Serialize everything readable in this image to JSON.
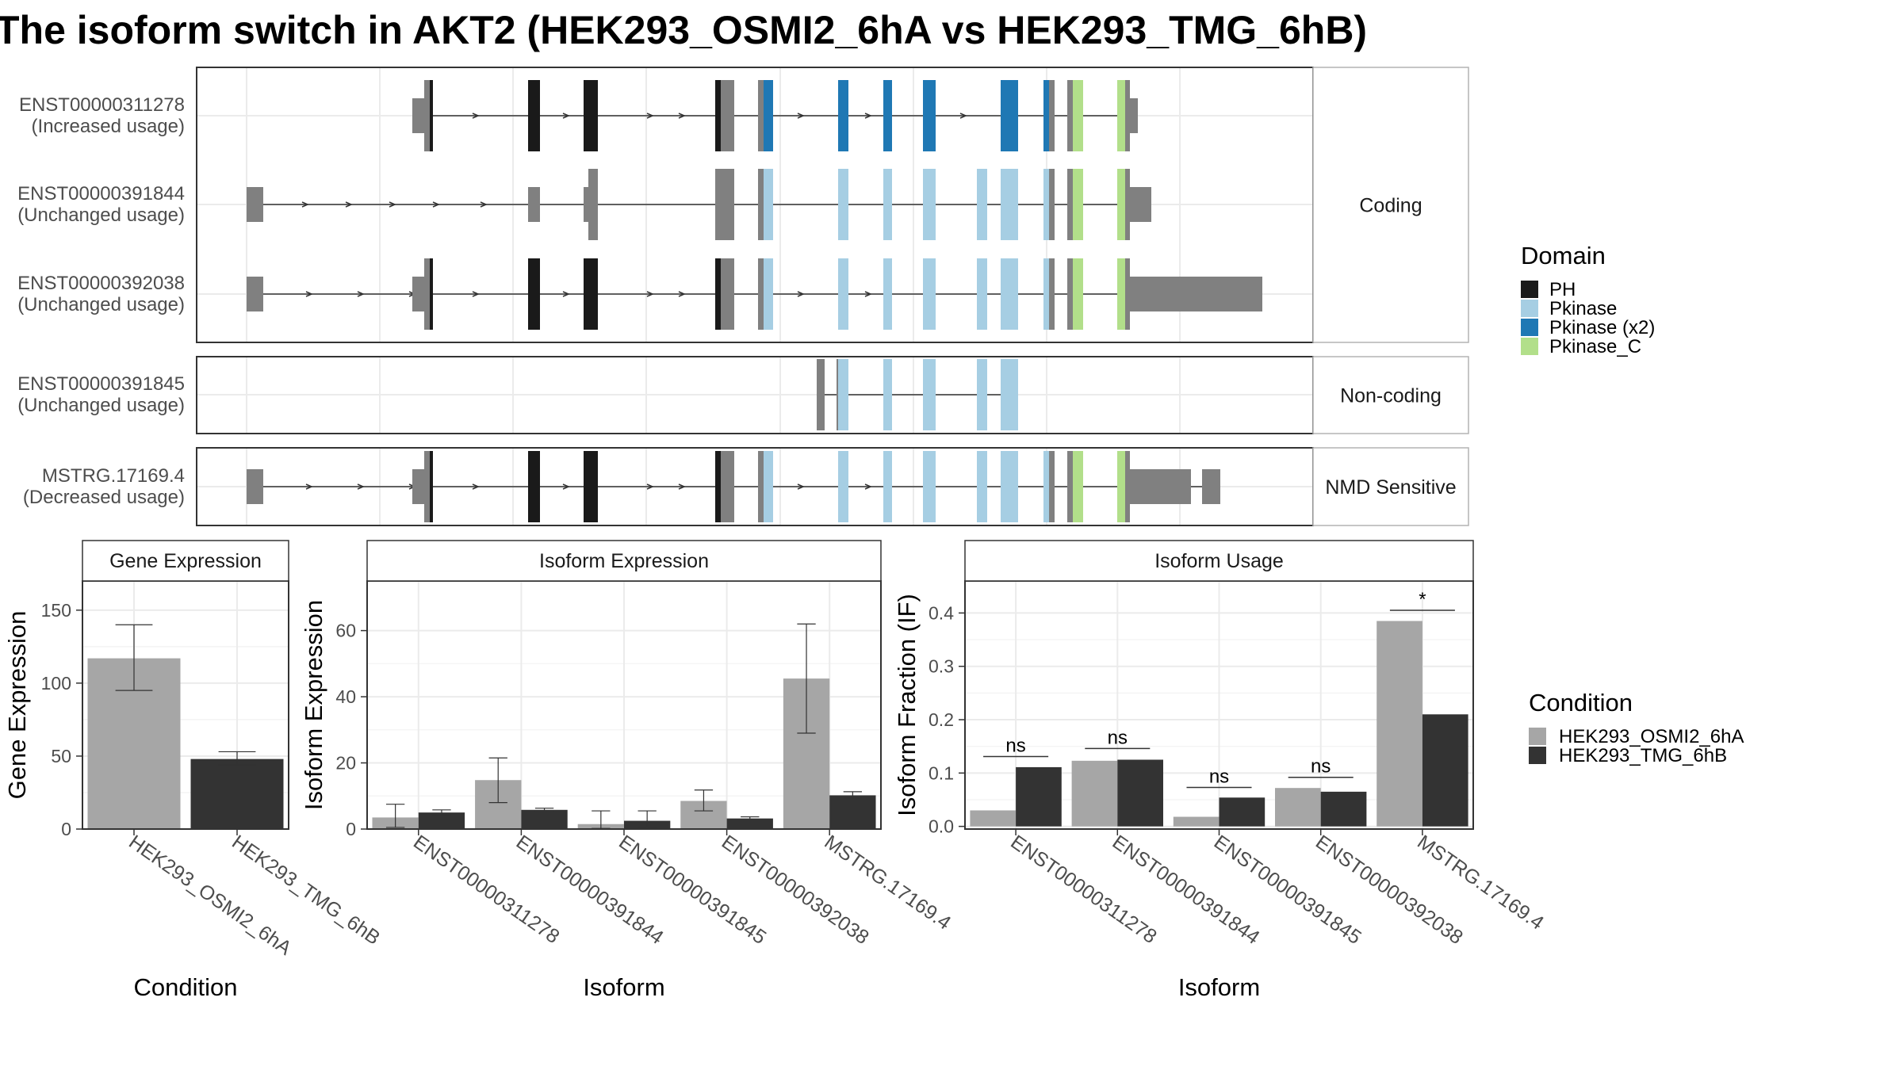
{
  "title": "The isoform switch in AKT2 (HEK293_OSMI2_6hA vs HEK293_TMG_6hB)",
  "colors": {
    "ph": "#1a1a1a",
    "pkinase": "#a6cee3",
    "pkinase_x2": "#1f78b4",
    "pkinase_c": "#b2df8a",
    "exon_gray": "#808080",
    "cond_a": "#a6a6a6",
    "cond_b": "#333333",
    "grid": "#ebebeb",
    "strip_fill": "#ffffff"
  },
  "chart_data": [
    {
      "type": "diagram",
      "name": "transcript-structure",
      "groups": [
        {
          "label": "Coding",
          "transcripts": [
            {
              "id": "ENST00000311278",
              "usage": "(Increased usage)"
            },
            {
              "id": "ENST00000391844",
              "usage": "(Unchanged usage)"
            },
            {
              "id": "ENST00000392038",
              "usage": "(Unchanged usage)"
            }
          ]
        },
        {
          "label": "Non-coding",
          "transcripts": [
            {
              "id": "ENST00000391845",
              "usage": "(Unchanged usage)"
            }
          ]
        },
        {
          "label": "NMD Sensitive",
          "transcripts": [
            {
              "id": "MSTRG.17169.4",
              "usage": "(Decreased usage)"
            }
          ]
        }
      ],
      "legend": {
        "title": "Domain",
        "entries": [
          {
            "name": "PH",
            "color": "#1a1a1a"
          },
          {
            "name": "Pkinase",
            "color": "#a6cee3"
          },
          {
            "name": "Pkinase (x2)",
            "color": "#1f78b4"
          },
          {
            "name": "Pkinase_C",
            "color": "#b2df8a"
          }
        ]
      }
    },
    {
      "type": "bar",
      "panel_title": "Gene Expression",
      "xlabel": "Condition",
      "ylabel": "Gene Expression",
      "ylim": [
        0,
        170
      ],
      "yticks": [
        0,
        50,
        100,
        150
      ],
      "categories": [
        "HEK293_OSMI2_6hA",
        "HEK293_TMG_6hB"
      ],
      "values": [
        117,
        48
      ],
      "err_low": [
        95,
        44
      ],
      "err_high": [
        140,
        53
      ]
    },
    {
      "type": "bar",
      "panel_title": "Isoform Expression",
      "xlabel": "Isoform",
      "ylabel": "Isoform Expression",
      "ylim": [
        0,
        75
      ],
      "yticks": [
        0,
        20,
        40,
        60
      ],
      "categories": [
        "ENST00000311278",
        "ENST00000391844",
        "ENST00000391845",
        "ENST00000392038",
        "MSTRG.17169.4"
      ],
      "series": [
        {
          "name": "HEK293_OSMI2_6hA",
          "values": [
            3.5,
            14.8,
            1.5,
            8.5,
            45.5
          ],
          "err_low": [
            0.5,
            8,
            0.2,
            5.5,
            29
          ],
          "err_high": [
            7.5,
            21.5,
            5.5,
            11.8,
            62
          ]
        },
        {
          "name": "HEK293_TMG_6hB",
          "values": [
            5,
            5.8,
            2.5,
            3.2,
            10.2
          ],
          "err_low": [
            4.4,
            5.4,
            0.5,
            2.8,
            9.3
          ],
          "err_high": [
            5.8,
            6.3,
            5.5,
            3.7,
            11.3
          ]
        }
      ]
    },
    {
      "type": "bar",
      "panel_title": "Isoform Usage",
      "xlabel": "Isoform",
      "ylabel": "Isoform Fraction (IF)",
      "ylim": [
        -0.005,
        0.46
      ],
      "yticks": [
        0.0,
        0.1,
        0.2,
        0.3,
        0.4
      ],
      "ytick_labels": [
        "0.0",
        "0.1",
        "0.2",
        "0.3",
        "0.4"
      ],
      "categories": [
        "ENST00000311278",
        "ENST00000391844",
        "ENST00000391845",
        "ENST00000392038",
        "MSTRG.17169.4"
      ],
      "series": [
        {
          "name": "HEK293_OSMI2_6hA",
          "values": [
            0.03,
            0.123,
            0.018,
            0.072,
            0.385
          ]
        },
        {
          "name": "HEK293_TMG_6hB",
          "values": [
            0.111,
            0.125,
            0.054,
            0.065,
            0.21
          ]
        }
      ],
      "significance": [
        "ns",
        "ns",
        "ns",
        "ns",
        "*"
      ],
      "sig_levels": [
        0.131,
        0.146,
        0.073,
        0.092,
        0.405
      ]
    }
  ],
  "condition_legend": {
    "title": "Condition",
    "entries": [
      {
        "name": "HEK293_OSMI2_6hA",
        "color": "#a6a6a6"
      },
      {
        "name": "HEK293_TMG_6hB",
        "color": "#333333"
      }
    ]
  }
}
